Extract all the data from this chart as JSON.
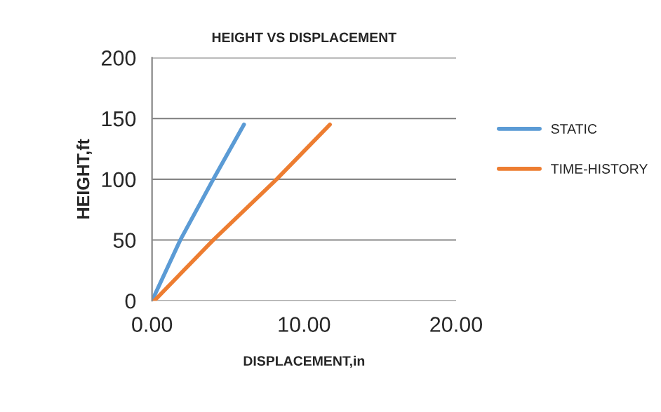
{
  "chart_data": {
    "type": "line",
    "title": "HEIGHT VS DISPLACEMENT",
    "xlabel": "DISPLACEMENT,in",
    "ylabel": "HEIGHT,ft",
    "xlim": [
      0,
      20
    ],
    "xticks": [
      {
        "value": 0,
        "label": "0.00"
      },
      {
        "value": 10,
        "label": "10.00"
      },
      {
        "value": 20,
        "label": "20.00"
      }
    ],
    "ylim": [
      0,
      200
    ],
    "yticks": [
      0,
      50,
      100,
      150,
      200
    ],
    "grid": "y",
    "legend": "right",
    "marker": "none",
    "line_style": "solid",
    "series": [
      {
        "name": "STATIC",
        "color": "#5b9bd5",
        "x": [
          0,
          0.93,
          1.86,
          4.03,
          6.05
        ],
        "values": [
          0,
          25,
          50,
          100,
          145
        ]
      },
      {
        "name": "TIME-HISTORY",
        "color": "#ed7d31",
        "x": [
          0.15,
          4.03,
          8.2,
          11.7
        ],
        "values": [
          0,
          50,
          100,
          145
        ]
      }
    ]
  }
}
